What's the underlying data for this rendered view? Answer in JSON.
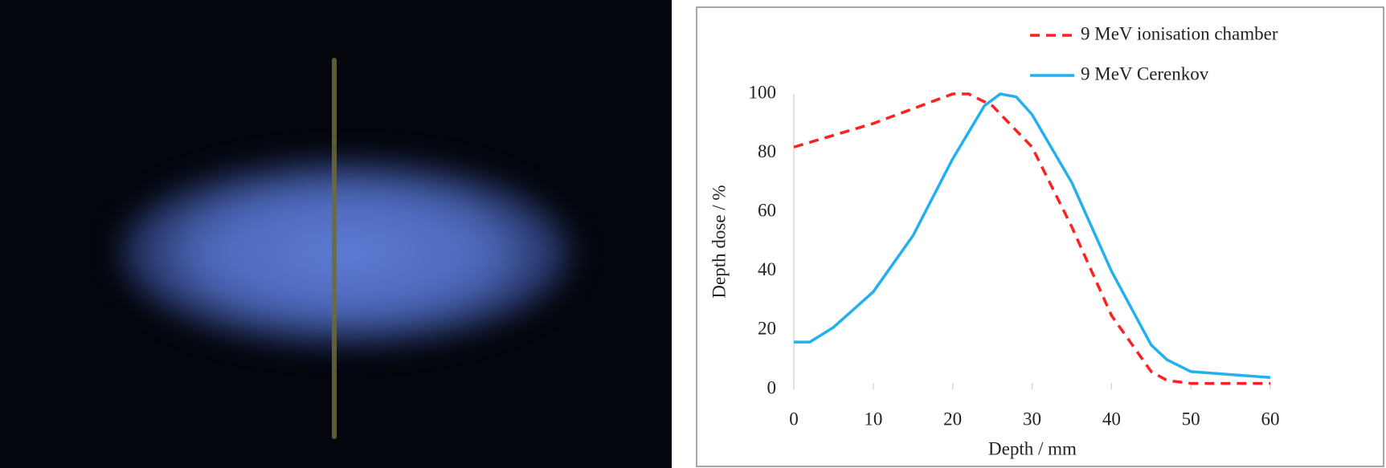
{
  "chart_data": {
    "type": "line",
    "xlabel": "Depth  / mm",
    "ylabel": "Depth dose / %",
    "xlim": [
      0,
      60
    ],
    "xticks": [
      0,
      10,
      20,
      30,
      40,
      50,
      60
    ],
    "ylim": [
      0,
      100
    ],
    "yticks": [
      0,
      20,
      40,
      60,
      80,
      100
    ],
    "grid": false,
    "legend": "upper right",
    "series": [
      {
        "name": "9 MeV ionisation chamber",
        "color": "#ff2020",
        "line_style": "dashed",
        "x": [
          0,
          5,
          10,
          15,
          20,
          22,
          25,
          30,
          35,
          40,
          45,
          47,
          50,
          55,
          60
        ],
        "values": [
          82,
          86,
          90,
          95,
          100,
          100,
          96,
          82,
          55,
          25,
          6,
          3,
          2,
          2,
          2
        ]
      },
      {
        "name": "9 MeV Cerenkov",
        "color": "#22b0ee",
        "line_style": "solid",
        "x": [
          0,
          2,
          5,
          10,
          15,
          20,
          24,
          26,
          28,
          30,
          35,
          40,
          45,
          47,
          50,
          55,
          60
        ],
        "values": [
          16,
          16,
          21,
          33,
          52,
          78,
          96,
          100,
          99,
          93,
          70,
          40,
          15,
          10,
          6,
          5,
          4
        ]
      }
    ]
  }
}
